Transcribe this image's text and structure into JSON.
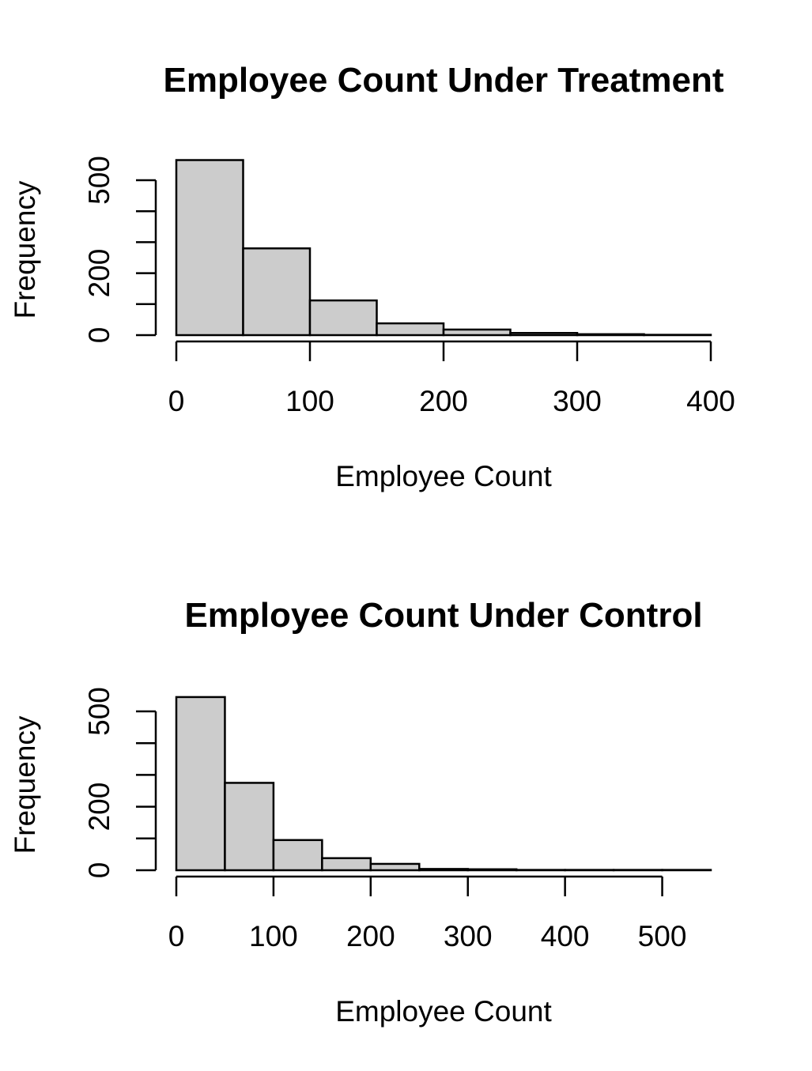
{
  "bar_fill": "#cccccc",
  "chart_data": [
    {
      "type": "bar",
      "title": "Employee Count Under Treatment",
      "xlabel": "Employee Count",
      "ylabel": "Frequency",
      "bin_edges": [
        0,
        50,
        100,
        150,
        200,
        250,
        300,
        350,
        400
      ],
      "values": [
        565,
        280,
        112,
        38,
        18,
        7,
        3,
        1
      ],
      "xlim": [
        0,
        400
      ],
      "ylim": [
        0,
        500
      ],
      "x_ticks": [
        "0",
        "100",
        "200",
        "300",
        "400"
      ],
      "y_ticks": [
        "0",
        "100",
        "200",
        "300",
        "400",
        "500"
      ],
      "y_tick_labels": [
        "0",
        "",
        "200",
        "",
        "",
        "500"
      ],
      "grid": false
    },
    {
      "type": "bar",
      "title": "Employee Count Under Control",
      "xlabel": "Employee Count",
      "ylabel": "Frequency",
      "bin_edges": [
        0,
        50,
        100,
        150,
        200,
        250,
        300,
        350,
        400,
        450,
        500,
        550
      ],
      "values": [
        545,
        275,
        95,
        38,
        20,
        4,
        3,
        1,
        1,
        1,
        1
      ],
      "xlim": [
        0,
        550
      ],
      "ylim": [
        0,
        500
      ],
      "x_ticks": [
        "0",
        "100",
        "200",
        "300",
        "400",
        "500"
      ],
      "y_ticks": [
        "0",
        "100",
        "200",
        "300",
        "400",
        "500"
      ],
      "y_tick_labels": [
        "0",
        "",
        "200",
        "",
        "",
        "500"
      ],
      "grid": false
    }
  ]
}
